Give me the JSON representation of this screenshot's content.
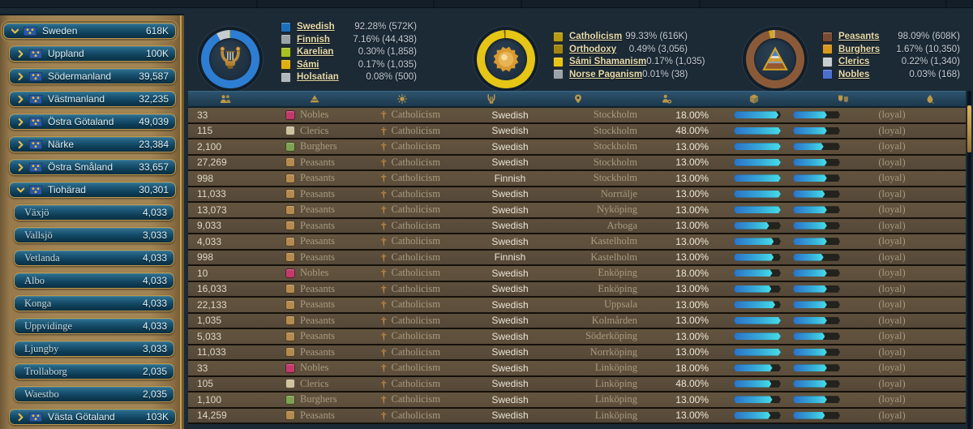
{
  "sidebar": {
    "items": [
      {
        "name": "Sweden",
        "value": "618K",
        "level": 0,
        "expand": "down",
        "flag": true
      },
      {
        "name": "Uppland",
        "value": "100K",
        "level": 1,
        "expand": "right",
        "flag": true
      },
      {
        "name": "Södermanland",
        "value": "39,587",
        "level": 1,
        "expand": "right",
        "flag": true
      },
      {
        "name": "Västmanland",
        "value": "32,235",
        "level": 1,
        "expand": "right",
        "flag": true
      },
      {
        "name": "Östra Götaland",
        "value": "49,039",
        "level": 1,
        "expand": "right",
        "flag": true
      },
      {
        "name": "Närke",
        "value": "23,384",
        "level": 1,
        "expand": "right",
        "flag": true
      },
      {
        "name": "Östra Småland",
        "value": "33,657",
        "level": 1,
        "expand": "right",
        "flag": true
      },
      {
        "name": "Tiohärad",
        "value": "30,301",
        "level": 1,
        "expand": "down",
        "flag": true
      },
      {
        "name": "Växjö",
        "value": "4,033",
        "level": 2
      },
      {
        "name": "Vallsjö",
        "value": "3,033",
        "level": 2
      },
      {
        "name": "Vetlanda",
        "value": "4,033",
        "level": 2
      },
      {
        "name": "Albo",
        "value": "4,033",
        "level": 2
      },
      {
        "name": "Konga",
        "value": "4,033",
        "level": 2
      },
      {
        "name": "Uppvidinge",
        "value": "4,033",
        "level": 2
      },
      {
        "name": "Ljungby",
        "value": "3,033",
        "level": 2
      },
      {
        "name": "Trollaborg",
        "value": "2,035",
        "level": 2
      },
      {
        "name": "Waestbo",
        "value": "2,035",
        "level": 2
      },
      {
        "name": "Västa Götaland",
        "value": "103K",
        "level": 1,
        "expand": "right",
        "flag": true
      }
    ]
  },
  "panels": [
    {
      "id": "culture",
      "icon": "lyre",
      "ring": {
        "from": -28,
        "segments": [
          {
            "color": "#c6cbd0",
            "deg": 26
          },
          {
            "color": "#9ab829",
            "deg": 2
          },
          {
            "color": "#2d7ed3",
            "deg": 332
          }
        ]
      },
      "legend": [
        {
          "color": "#1d6fb8",
          "label": "Swedish",
          "value": "92.28% (572K)"
        },
        {
          "color": "#9aa3a8",
          "label": "Finnish",
          "value": "7.16% (44,438)"
        },
        {
          "color": "#a8c220",
          "label": "Karelian",
          "value": "0.30% (1,858)"
        },
        {
          "color": "#e0b010",
          "label": "Sámi",
          "value": "0.17% (1,035)"
        },
        {
          "color": "#b0b8bc",
          "label": "Holsatian",
          "value": "0.08% (500)"
        }
      ]
    },
    {
      "id": "religion",
      "icon": "sun",
      "ring": {
        "from": -4,
        "segments": [
          {
            "color": "#6e5f10",
            "deg": 3
          },
          {
            "color": "#e5c515",
            "deg": 357
          }
        ]
      },
      "legend": [
        {
          "color": "#b89b10",
          "label": "Catholicism",
          "value": "99.33% (616K)"
        },
        {
          "color": "#a0850e",
          "label": "Orthodoxy",
          "value": "0.49% (3,056)"
        },
        {
          "color": "#e8c515",
          "label": "Sámi Shamanism",
          "value": "0.17% (1,035)"
        },
        {
          "color": "#9aa3a8",
          "label": "Norse Paganism",
          "value": "0.01% (38)"
        }
      ]
    },
    {
      "id": "social-class",
      "icon": "pyramid",
      "ring": {
        "from": -13,
        "segments": [
          {
            "color": "#d8a520",
            "deg": 10
          },
          {
            "color": "#c6cbd0",
            "deg": 2
          },
          {
            "color": "#8a5a38",
            "deg": 348
          }
        ]
      },
      "legend": [
        {
          "color": "#7a4a32",
          "label": "Peasants",
          "value": "98.09% (608K)"
        },
        {
          "color": "#d8971d",
          "label": "Burghers",
          "value": "1.67% (10,350)"
        },
        {
          "color": "#c8cdd2",
          "label": "Clerics",
          "value": "0.22% (1,340)"
        },
        {
          "color": "#4a6fd0",
          "label": "Nobles",
          "value": "0.03% (168)"
        }
      ]
    }
  ],
  "table": {
    "columns": [
      "population",
      "social-class",
      "religion",
      "culture",
      "location",
      "literacy",
      "goods",
      "happiness",
      "unrest"
    ],
    "class_colors": {
      "Nobles": "#c13a6a",
      "Clerics": "#cfc3a0",
      "Burghers": "#7fa050",
      "Peasants": "#b48a4e"
    },
    "rows": [
      {
        "size": "33",
        "cls": "Nobles",
        "religion": "Catholicism",
        "culture": "Swedish",
        "location": "Stockholm",
        "literacy": "18.00%",
        "bar1": 95,
        "bar2": 72,
        "status": "(loyal)"
      },
      {
        "size": "115",
        "cls": "Clerics",
        "religion": "Catholicism",
        "culture": "Swedish",
        "location": "Stockholm",
        "literacy": "48.00%",
        "bar1": 100,
        "bar2": 72,
        "status": "(loyal)"
      },
      {
        "size": "2,100",
        "cls": "Burghers",
        "religion": "Catholicism",
        "culture": "Swedish",
        "location": "Stockholm",
        "literacy": "13.00%",
        "bar1": 100,
        "bar2": 65,
        "status": "(loyal)"
      },
      {
        "size": "27,269",
        "cls": "Peasants",
        "religion": "Catholicism",
        "culture": "Swedish",
        "location": "Stockholm",
        "literacy": "13.00%",
        "bar1": 100,
        "bar2": 72,
        "status": "(loyal)"
      },
      {
        "size": "998",
        "cls": "Peasants",
        "religion": "Catholicism",
        "culture": "Finnish",
        "location": "Stockholm",
        "literacy": "13.00%",
        "bar1": 100,
        "bar2": 72,
        "status": "(loyal)"
      },
      {
        "size": "11,033",
        "cls": "Peasants",
        "religion": "Catholicism",
        "culture": "Swedish",
        "location": "Norrtälje",
        "literacy": "13.00%",
        "bar1": 100,
        "bar2": 68,
        "status": "(loyal)"
      },
      {
        "size": "13,073",
        "cls": "Peasants",
        "religion": "Catholicism",
        "culture": "Swedish",
        "location": "Nyköping",
        "literacy": "13.00%",
        "bar1": 100,
        "bar2": 72,
        "status": "(loyal)"
      },
      {
        "size": "9,033",
        "cls": "Peasants",
        "religion": "Catholicism",
        "culture": "Swedish",
        "location": "Arboga",
        "literacy": "13.00%",
        "bar1": 75,
        "bar2": 72,
        "status": "(loyal)"
      },
      {
        "size": "4,033",
        "cls": "Peasants",
        "religion": "Catholicism",
        "culture": "Swedish",
        "location": "Kastelholm",
        "literacy": "13.00%",
        "bar1": 85,
        "bar2": 72,
        "status": "(loyal)"
      },
      {
        "size": "998",
        "cls": "Peasants",
        "religion": "Catholicism",
        "culture": "Finnish",
        "location": "Kastelholm",
        "literacy": "13.00%",
        "bar1": 85,
        "bar2": 65,
        "status": "(loyal)"
      },
      {
        "size": "10",
        "cls": "Nobles",
        "religion": "Catholicism",
        "culture": "Swedish",
        "location": "Enköping",
        "literacy": "18.00%",
        "bar1": 82,
        "bar2": 72,
        "status": "(loyal)"
      },
      {
        "size": "16,033",
        "cls": "Peasants",
        "religion": "Catholicism",
        "culture": "Swedish",
        "location": "Enköping",
        "literacy": "13.00%",
        "bar1": 80,
        "bar2": 72,
        "status": "(loyal)"
      },
      {
        "size": "22,133",
        "cls": "Peasants",
        "religion": "Catholicism",
        "culture": "Swedish",
        "location": "Uppsala",
        "literacy": "13.00%",
        "bar1": 88,
        "bar2": 72,
        "status": "(loyal)"
      },
      {
        "size": "1,035",
        "cls": "Peasants",
        "religion": "Catholicism",
        "culture": "Swedish",
        "location": "Kolmården",
        "literacy": "13.00%",
        "bar1": 100,
        "bar2": 72,
        "status": "(loyal)"
      },
      {
        "size": "5,033",
        "cls": "Peasants",
        "religion": "Catholicism",
        "culture": "Swedish",
        "location": "Söderköping",
        "literacy": "13.00%",
        "bar1": 100,
        "bar2": 68,
        "status": "(loyal)"
      },
      {
        "size": "11,033",
        "cls": "Peasants",
        "religion": "Catholicism",
        "culture": "Swedish",
        "location": "Norrköping",
        "literacy": "13.00%",
        "bar1": 100,
        "bar2": 72,
        "status": "(loyal)"
      },
      {
        "size": "33",
        "cls": "Nobles",
        "religion": "Catholicism",
        "culture": "Swedish",
        "location": "Linköping",
        "literacy": "18.00%",
        "bar1": 82,
        "bar2": 72,
        "status": "(loyal)"
      },
      {
        "size": "105",
        "cls": "Clerics",
        "religion": "Catholicism",
        "culture": "Swedish",
        "location": "Linköping",
        "literacy": "48.00%",
        "bar1": 80,
        "bar2": 72,
        "status": "(loyal)"
      },
      {
        "size": "1,100",
        "cls": "Burghers",
        "religion": "Catholicism",
        "culture": "Swedish",
        "location": "Linköping",
        "literacy": "13.00%",
        "bar1": 82,
        "bar2": 72,
        "status": "(loyal)"
      },
      {
        "size": "14,259",
        "cls": "Peasants",
        "religion": "Catholicism",
        "culture": "Swedish",
        "location": "Linköping",
        "literacy": "13.00%",
        "bar1": 78,
        "bar2": 68,
        "status": "(loyal)"
      }
    ]
  }
}
